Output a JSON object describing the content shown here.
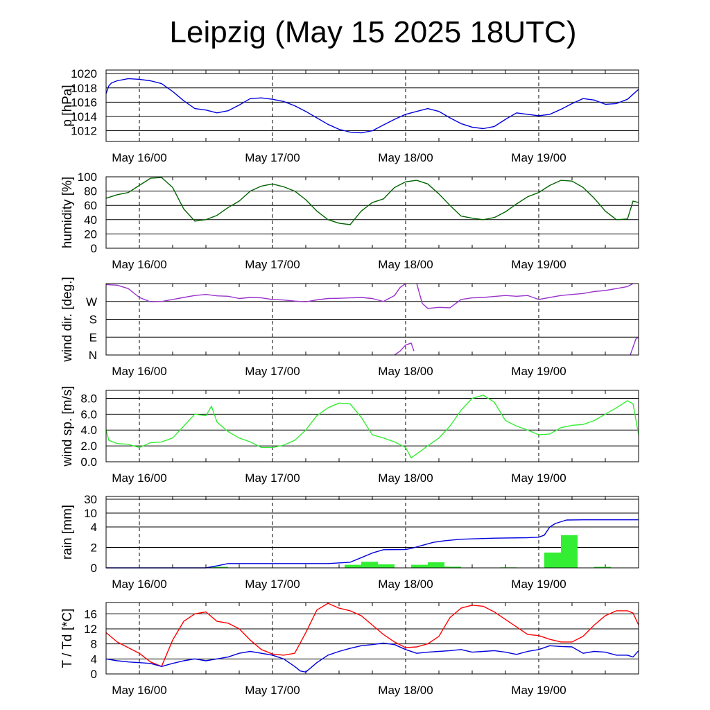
{
  "title": "Leipzig (May 15 2025 18UTC)",
  "chart_data": [
    {
      "type": "line",
      "ylabel": "p [hPa]",
      "x_ticks": [
        "May 16/00",
        "May 17/00",
        "May 18/00",
        "May 19/00"
      ],
      "x_tick_hours": [
        6,
        30,
        54,
        78
      ],
      "xlim": [
        0,
        96
      ],
      "ylim": [
        1010.5,
        1020.5
      ],
      "y_ticks": [
        1012,
        1014,
        1016,
        1018,
        1020
      ],
      "y_tick_labels": [
        "1012",
        "1014",
        "1016",
        "1018",
        "1020"
      ],
      "series": [
        {
          "color": "#0000dd",
          "x": [
            0,
            0.5,
            1,
            2,
            4,
            6,
            8,
            10,
            12,
            14,
            16,
            18,
            20,
            22,
            24,
            26,
            28,
            30,
            32,
            34,
            36,
            38,
            40,
            42,
            44,
            46,
            48,
            50,
            52,
            54,
            56,
            58,
            60,
            62,
            64,
            66,
            68,
            70,
            72,
            74,
            76,
            78,
            80,
            82,
            84,
            86,
            88,
            90,
            92,
            94,
            96
          ],
          "y": [
            1017.2,
            1018.3,
            1018.7,
            1019.0,
            1019.3,
            1019.2,
            1019.0,
            1018.6,
            1017.5,
            1016.2,
            1015.1,
            1014.9,
            1014.5,
            1014.8,
            1015.6,
            1016.5,
            1016.6,
            1016.4,
            1016.1,
            1015.5,
            1014.7,
            1013.8,
            1012.9,
            1012.2,
            1011.8,
            1011.7,
            1012.0,
            1012.8,
            1013.6,
            1014.3,
            1014.7,
            1015.1,
            1014.7,
            1013.8,
            1013.0,
            1012.5,
            1012.3,
            1012.6,
            1013.6,
            1014.5,
            1014.3,
            1014.1,
            1014.3,
            1015.0,
            1015.8,
            1016.5,
            1016.3,
            1015.7,
            1015.8,
            1016.4,
            1017.8
          ]
        }
      ]
    },
    {
      "type": "line",
      "ylabel": "humidity [%]",
      "x_ticks": [
        "May 16/00",
        "May 17/00",
        "May 18/00",
        "May 19/00"
      ],
      "x_tick_hours": [
        6,
        30,
        54,
        78
      ],
      "xlim": [
        0,
        96
      ],
      "ylim": [
        0,
        100
      ],
      "y_ticks": [
        0,
        20,
        40,
        60,
        80,
        100
      ],
      "y_tick_labels": [
        "0",
        "20",
        "40",
        "60",
        "80",
        "100"
      ],
      "series": [
        {
          "color": "#006400",
          "x": [
            0,
            2,
            4,
            6,
            8,
            10,
            12,
            14,
            16,
            18,
            20,
            22,
            24,
            26,
            28,
            30,
            32,
            34,
            36,
            38,
            40,
            42,
            44,
            46,
            48,
            50,
            52,
            54,
            56,
            58,
            60,
            62,
            64,
            66,
            68,
            70,
            72,
            74,
            76,
            78,
            80,
            82,
            84,
            86,
            88,
            90,
            92,
            94,
            95,
            96
          ],
          "y": [
            70,
            75,
            78,
            88,
            98,
            99,
            85,
            55,
            38,
            40,
            46,
            57,
            66,
            80,
            87,
            90,
            86,
            80,
            68,
            52,
            40,
            35,
            33,
            52,
            64,
            69,
            85,
            93,
            95,
            90,
            76,
            60,
            45,
            42,
            40,
            43,
            51,
            62,
            72,
            78,
            88,
            95,
            94,
            85,
            70,
            52,
            40,
            41,
            66,
            64
          ]
        }
      ]
    },
    {
      "type": "line",
      "ylabel": "wind dir. [deg.]",
      "x_ticks": [
        "May 16/00",
        "May 17/00",
        "May 18/00",
        "May 19/00"
      ],
      "x_tick_hours": [
        6,
        30,
        54,
        78
      ],
      "xlim": [
        0,
        96
      ],
      "ylim": [
        0,
        360
      ],
      "y_ticks": [
        0,
        90,
        180,
        270
      ],
      "y_tick_labels": [
        "N",
        "E",
        "S",
        "W"
      ],
      "series": [
        {
          "color": "#9932cc",
          "x": [
            0,
            2,
            4,
            6,
            8,
            10,
            12,
            14,
            16,
            18,
            20,
            22,
            24,
            26,
            28,
            30,
            32,
            34,
            36,
            38,
            40,
            42,
            44,
            46,
            48,
            50,
            52,
            53,
            54
          ],
          "y": [
            355,
            352,
            335,
            290,
            268,
            270,
            280,
            290,
            300,
            305,
            298,
            296,
            285,
            290,
            288,
            280,
            277,
            272,
            268,
            278,
            285,
            286,
            288,
            290,
            285,
            270,
            300,
            340,
            360
          ]
        },
        {
          "color": "#9932cc",
          "x": [
            52,
            53,
            54,
            55,
            55.5
          ],
          "y": [
            0,
            20,
            50,
            60,
            20
          ]
        },
        {
          "color": "#9932cc",
          "x": [
            56,
            57,
            58,
            60,
            62,
            64,
            66,
            68,
            70,
            72,
            74,
            76,
            78,
            80,
            82,
            84,
            86,
            88,
            90,
            92,
            94,
            95
          ],
          "y": [
            360,
            260,
            235,
            240,
            238,
            280,
            288,
            290,
            295,
            300,
            296,
            300,
            280,
            290,
            300,
            305,
            310,
            320,
            325,
            335,
            345,
            360
          ]
        },
        {
          "color": "#9932cc",
          "x": [
            94.5,
            95,
            95.5,
            96
          ],
          "y": [
            0,
            40,
            80,
            90
          ]
        }
      ]
    },
    {
      "type": "line",
      "ylabel": "wind sp. [m/s]",
      "x_ticks": [
        "May 16/00",
        "May 17/00",
        "May 18/00",
        "May 19/00"
      ],
      "x_tick_hours": [
        6,
        30,
        54,
        78
      ],
      "xlim": [
        0,
        96
      ],
      "ylim": [
        0,
        9
      ],
      "y_ticks": [
        0,
        2,
        4,
        6,
        8
      ],
      "y_tick_labels": [
        "0.0",
        "2.0",
        "4.0",
        "6.0",
        "8.0"
      ],
      "series": [
        {
          "color": "#33ee33",
          "x": [
            0,
            0.5,
            2,
            4,
            6,
            8,
            10,
            12,
            14,
            16,
            18,
            19,
            20,
            22,
            24,
            26,
            28,
            30,
            32,
            34,
            36,
            38,
            40,
            42,
            44,
            46,
            48,
            50,
            52,
            54,
            55,
            56,
            58,
            60,
            62,
            64,
            66,
            68,
            70,
            72,
            74,
            76,
            78,
            80,
            82,
            84,
            86,
            88,
            90,
            92,
            94,
            95,
            96
          ],
          "y": [
            4.0,
            2.7,
            2.3,
            2.2,
            1.8,
            2.4,
            2.5,
            3.0,
            4.5,
            6.0,
            5.8,
            7.0,
            5.0,
            3.8,
            3.0,
            2.5,
            1.8,
            1.8,
            2.1,
            2.7,
            4.0,
            5.8,
            6.8,
            7.4,
            7.3,
            5.6,
            3.4,
            3.0,
            2.5,
            1.8,
            0.5,
            1.0,
            2.0,
            3.0,
            4.5,
            6.5,
            8.0,
            8.4,
            7.5,
            5.2,
            4.5,
            4.0,
            3.4,
            3.5,
            4.3,
            4.6,
            4.7,
            5.2,
            6.0,
            6.8,
            7.7,
            7.3,
            3.4
          ]
        }
      ]
    },
    {
      "type": "bar",
      "ylabel": "rain [mm]",
      "x_ticks": [
        "May 16/00",
        "May 17/00",
        "May 18/00",
        "May 19/00"
      ],
      "x_tick_hours": [
        6,
        30,
        54,
        78
      ],
      "xlim": [
        0,
        96
      ],
      "ylim": [
        0,
        30
      ],
      "y_ticks": [
        0,
        2,
        4,
        10,
        30
      ],
      "y_tick_labels": [
        "0",
        "2",
        "4",
        "10",
        "30"
      ],
      "bars": {
        "color": "#33ee33",
        "start_hours": [
          19,
          43,
          46,
          49,
          55,
          58,
          61,
          71,
          79,
          82,
          88
        ],
        "width_hours": 3,
        "values_mm": [
          0.1,
          0.3,
          0.6,
          0.35,
          0.3,
          0.55,
          0.12,
          0.05,
          1.5,
          3.2,
          0.1
        ]
      },
      "series": [
        {
          "name": "",
          "color": "#0000dd",
          "x": [
            0,
            18,
            20,
            22,
            30,
            40,
            44,
            46,
            48,
            50,
            54,
            55,
            57,
            59,
            61,
            64,
            70,
            76,
            78,
            79,
            80,
            81,
            83,
            86,
            96
          ],
          "y": [
            0,
            0,
            0.2,
            0.42,
            0.42,
            0.42,
            0.55,
            1.0,
            1.45,
            1.78,
            1.8,
            1.9,
            2.2,
            2.5,
            2.65,
            2.8,
            2.9,
            2.95,
            3.0,
            3.2,
            4.0,
            5.5,
            7.0,
            7.1,
            7.1
          ]
        }
      ]
    },
    {
      "type": "line",
      "ylabel": "T / Td [*C]",
      "x_ticks": [
        "May 16/00",
        "May 17/00",
        "May 18/00",
        "May 19/00"
      ],
      "x_tick_hours": [
        6,
        30,
        54,
        78
      ],
      "xlim": [
        0,
        96
      ],
      "ylim": [
        0,
        19
      ],
      "y_ticks": [
        0,
        4,
        8,
        12,
        16
      ],
      "y_tick_labels": [
        "0",
        "4",
        "8",
        "12",
        "16"
      ],
      "series": [
        {
          "color": "#ff0000",
          "x": [
            0,
            2,
            4,
            6,
            8,
            10,
            12,
            14,
            16,
            18,
            20,
            22,
            24,
            26,
            28,
            30,
            32,
            34,
            36,
            38,
            40,
            42,
            44,
            46,
            48,
            50,
            52,
            54,
            56,
            58,
            60,
            62,
            64,
            66,
            68,
            70,
            72,
            74,
            76,
            78,
            80,
            82,
            84,
            86,
            88,
            90,
            92,
            94,
            95,
            96
          ],
          "y": [
            11,
            8.5,
            7,
            5.5,
            3.2,
            2.0,
            9,
            14,
            16,
            16.5,
            14,
            13.5,
            12,
            9,
            6.5,
            5.3,
            5.0,
            5.5,
            11,
            17,
            18.8,
            17.5,
            16.8,
            15.5,
            13.0,
            10.5,
            8.5,
            7.0,
            7.2,
            8.0,
            10,
            15,
            17.5,
            18.3,
            18.0,
            16.5,
            14.5,
            12.5,
            10.5,
            10.2,
            9.2,
            8.5,
            8.5,
            10,
            13,
            15.5,
            16.8,
            16.8,
            16.2,
            13
          ]
        },
        {
          "color": "#0000dd",
          "x": [
            0,
            2,
            4,
            6,
            8,
            10,
            12,
            14,
            16,
            18,
            20,
            22,
            24,
            26,
            28,
            30,
            32,
            34,
            35,
            36,
            38,
            40,
            42,
            44,
            46,
            48,
            50,
            52,
            54,
            56,
            58,
            60,
            62,
            64,
            66,
            68,
            70,
            72,
            74,
            76,
            78,
            80,
            82,
            84,
            86,
            88,
            90,
            92,
            94,
            95,
            96
          ],
          "y": [
            4.0,
            3.5,
            3.2,
            3.0,
            2.8,
            2.0,
            2.8,
            3.5,
            4.0,
            3.5,
            4.0,
            4.5,
            5.5,
            6.0,
            5.5,
            5.0,
            4.0,
            2.0,
            0.8,
            0.5,
            3.0,
            5.0,
            6.0,
            6.8,
            7.5,
            7.8,
            8.2,
            7.8,
            6.5,
            5.5,
            5.8,
            6.0,
            6.2,
            6.5,
            5.8,
            6.0,
            6.2,
            5.8,
            5.2,
            6.0,
            6.5,
            7.5,
            7.3,
            7.2,
            5.5,
            6.0,
            5.8,
            5.0,
            5.0,
            4.5,
            6.2
          ]
        }
      ]
    }
  ]
}
